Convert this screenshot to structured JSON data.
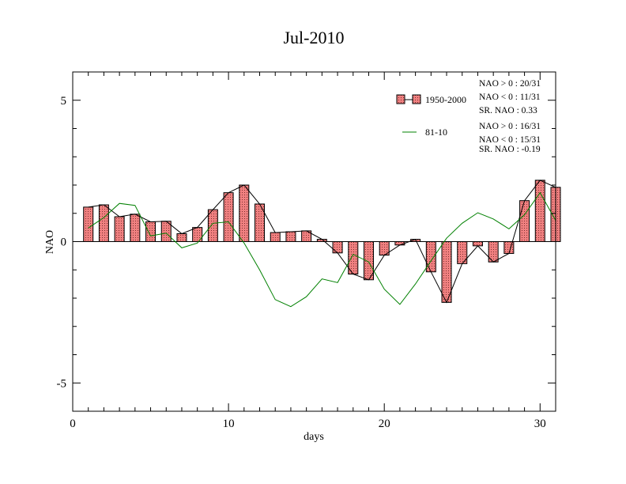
{
  "chart_data": {
    "type": "bar",
    "title": "Jul-2010",
    "xlabel": "days",
    "ylabel": "NAO",
    "xlim": [
      0,
      31
    ],
    "ylim": [
      -6,
      6
    ],
    "x_ticks": [
      0,
      10,
      20,
      30
    ],
    "x_tick_labels": [
      "0",
      "10",
      "20",
      "30"
    ],
    "y_ticks": [
      5,
      0,
      -5
    ],
    "y_tick_labels": [
      "5",
      "0",
      "-5"
    ],
    "x": [
      1,
      2,
      3,
      4,
      5,
      6,
      7,
      8,
      9,
      10,
      11,
      12,
      13,
      14,
      15,
      16,
      17,
      18,
      19,
      20,
      21,
      22,
      23,
      24,
      25,
      26,
      27,
      28,
      29,
      30,
      31
    ],
    "series": [
      {
        "name": "1950-2000",
        "kind": "bar",
        "color": "#f08080",
        "values": [
          1.22,
          1.3,
          0.88,
          0.97,
          0.7,
          0.72,
          0.28,
          0.5,
          1.13,
          1.73,
          2.0,
          1.33,
          0.32,
          0.35,
          0.38,
          0.08,
          -0.4,
          -1.15,
          -1.35,
          -0.48,
          -0.12,
          0.08,
          -1.07,
          -2.15,
          -0.78,
          -0.15,
          -0.72,
          -0.42,
          1.45,
          2.17,
          1.92
        ]
      },
      {
        "name": "81-10",
        "kind": "line",
        "color": "#008000",
        "values": [
          0.48,
          0.85,
          1.35,
          1.28,
          0.2,
          0.3,
          -0.22,
          -0.05,
          0.65,
          0.7,
          -0.05,
          -1.0,
          -2.05,
          -2.3,
          -1.95,
          -1.32,
          -1.45,
          -0.45,
          -0.72,
          -1.68,
          -2.22,
          -1.5,
          -0.68,
          0.12,
          0.65,
          1.02,
          0.8,
          0.45,
          0.95,
          1.73,
          0.75
        ]
      }
    ],
    "legend": {
      "placement": "top-right",
      "items": [
        "1950-2000",
        "81-10"
      ]
    },
    "annotations": {
      "group1": [
        "NAO > 0 : 20/31",
        "NAO < 0 : 11/31",
        "SR. NAO :  0.33"
      ],
      "group2": [
        "NAO > 0 : 16/31",
        "NAO < 0 : 15/31",
        "SR. NAO : -0.19"
      ]
    },
    "grid": false
  }
}
